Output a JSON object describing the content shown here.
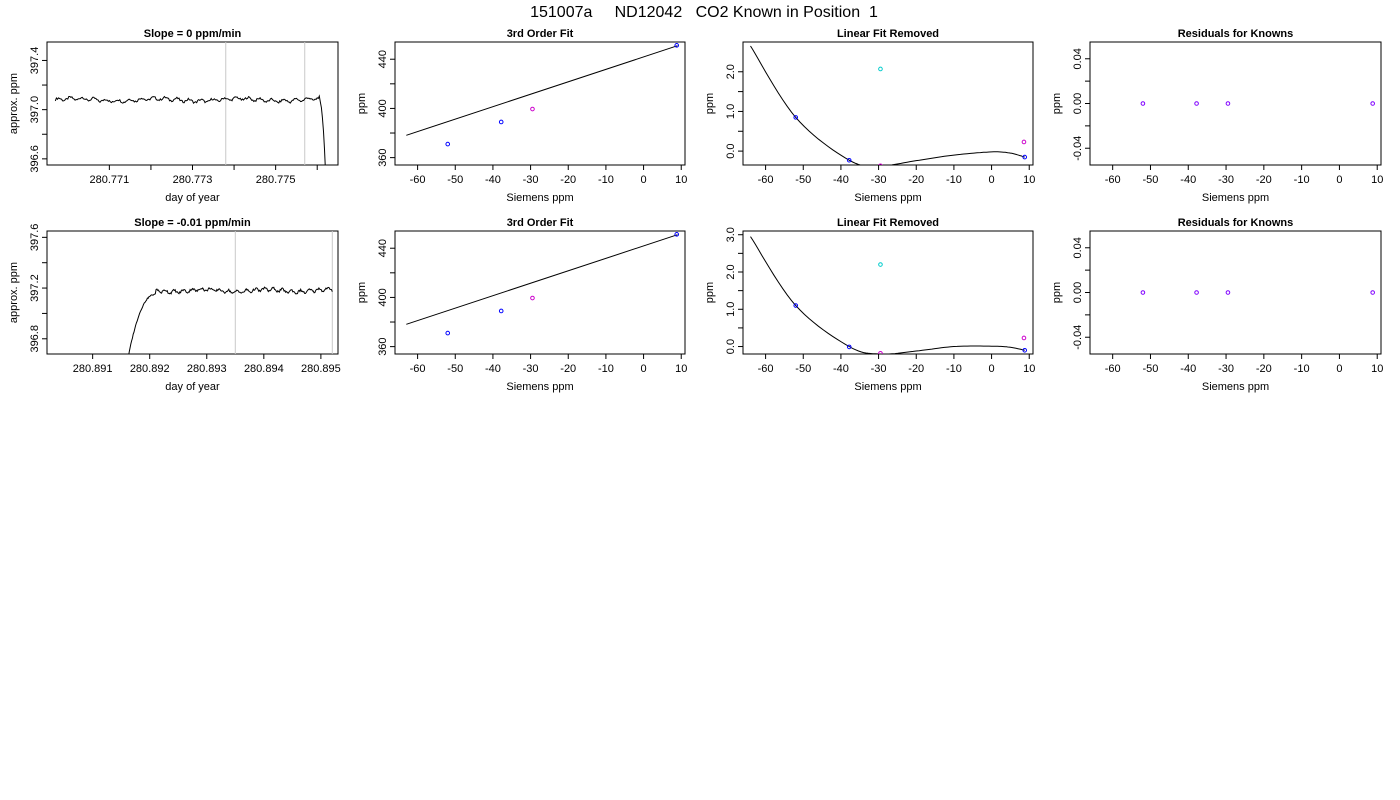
{
  "figure": {
    "title": "151007a     ND12042   CO2 Known in Position  1"
  },
  "colors": {
    "trace": "#000000",
    "vline": "#c8c8c8",
    "known": "#0000ff",
    "unknown": "#00cccc",
    "extra": "#cc00cc",
    "residual": "#8000ff"
  },
  "chart_data": [
    {
      "id": "r1-trace",
      "type": "line",
      "title": "Slope =  0  ppm/min",
      "xlabel": "day of year",
      "ylabel": "approx. ppm",
      "xlim": [
        280.7695,
        280.7765
      ],
      "ylim": [
        396.55,
        397.55
      ],
      "xticks": [
        280.771,
        280.772,
        280.773,
        280.774,
        280.775,
        280.776
      ],
      "xticklabels": [
        "280.771",
        "",
        "280.773",
        "",
        "280.775",
        ""
      ],
      "yticks": [
        396.6,
        397.0,
        397.4
      ],
      "yticklabels": [
        "396.6",
        "397.0",
        "397.4"
      ],
      "yminor": [
        396.8,
        397.2
      ],
      "vlines": [
        280.7738,
        280.7757
      ],
      "series": [
        {
          "values_profile": "flat",
          "base": 397.08,
          "x_start": 280.7697,
          "x_end": 280.7762,
          "tail_drop_to": 396.5
        }
      ]
    },
    {
      "id": "r1-fit",
      "type": "scatter",
      "title": "3rd Order Fit",
      "xlabel": "Siemens ppm",
      "ylabel": "ppm",
      "xlim": [
        -66,
        11
      ],
      "ylim": [
        354,
        454
      ],
      "xticks": [
        -60,
        -50,
        -40,
        -30,
        -20,
        -10,
        0,
        10
      ],
      "yticks": [
        360,
        400,
        440
      ],
      "yminor": [
        380,
        420
      ],
      "curve": {
        "slope": 1.0126,
        "intercept": 441.9,
        "x0": -63
      },
      "points": [
        {
          "x": -52.0,
          "y": 371.0,
          "role": "known"
        },
        {
          "x": -37.8,
          "y": 389.0,
          "role": "known"
        },
        {
          "x": -29.5,
          "y": 399.5,
          "role": "extra"
        },
        {
          "x": 8.8,
          "y": 451.3,
          "role": "known"
        }
      ]
    },
    {
      "id": "r1-linrem",
      "type": "scatter",
      "title": "Linear Fit Removed",
      "xlabel": "Siemens ppm",
      "ylabel": "ppm",
      "xlim": [
        -66,
        11
      ],
      "ylim": [
        -0.35,
        2.75
      ],
      "xticks": [
        -60,
        -50,
        -40,
        -30,
        -20,
        -10,
        0,
        10
      ],
      "yticks": [
        0.0,
        1.0,
        2.0
      ],
      "yticklabels": [
        "0.0",
        "1.0",
        "2.0"
      ],
      "yminor": [
        0.5,
        1.5
      ],
      "curve": {
        "type": "poly",
        "x0": -64.0,
        "x1": 9.0,
        "pts": [
          [
            -64,
            2.65
          ],
          [
            -52,
            0.85
          ],
          [
            -37.8,
            -0.23
          ],
          [
            -29.5,
            -0.37
          ],
          [
            -20,
            -0.24
          ],
          [
            -10,
            -0.1
          ],
          [
            0,
            -0.02
          ],
          [
            5,
            -0.05
          ],
          [
            8.8,
            -0.15
          ]
        ]
      },
      "points": [
        {
          "x": -52.0,
          "y": 0.85,
          "role": "known"
        },
        {
          "x": -37.8,
          "y": -0.23,
          "role": "known"
        },
        {
          "x": -29.5,
          "y": -0.37,
          "role": "extra"
        },
        {
          "x": -29.5,
          "y": 2.07,
          "role": "unknown"
        },
        {
          "x": 8.6,
          "y": 0.23,
          "role": "extra"
        },
        {
          "x": 8.8,
          "y": -0.15,
          "role": "known"
        }
      ]
    },
    {
      "id": "r1-resid",
      "type": "scatter",
      "title": "Residuals for Knowns",
      "xlabel": "Siemens ppm",
      "ylabel": "ppm",
      "xlim": [
        -66,
        11
      ],
      "ylim": [
        -0.055,
        0.055
      ],
      "xticks": [
        -60,
        -50,
        -40,
        -30,
        -20,
        -10,
        0,
        10
      ],
      "yticks": [
        -0.04,
        0.0,
        0.04
      ],
      "yticklabels": [
        "-0.04",
        "0.00",
        "0.04"
      ],
      "yminor": [
        -0.02,
        0.02
      ],
      "points": [
        {
          "x": -52.0,
          "y": 0.0,
          "role": "residual"
        },
        {
          "x": -37.8,
          "y": 0.0,
          "role": "residual"
        },
        {
          "x": -29.5,
          "y": 0.0,
          "role": "residual"
        },
        {
          "x": 8.8,
          "y": 0.0,
          "role": "residual"
        }
      ]
    },
    {
      "id": "r2-trace",
      "type": "line",
      "title": "Slope =  -0.01  ppm/min",
      "xlabel": "day of year",
      "ylabel": "approx. ppm",
      "xlim": [
        280.8902,
        280.8953
      ],
      "ylim": [
        396.68,
        397.65
      ],
      "xticks": [
        280.891,
        280.892,
        280.893,
        280.894,
        280.895
      ],
      "xticklabels": [
        "280.891",
        "280.892",
        "280.893",
        "280.894",
        "280.895"
      ],
      "yticks": [
        396.8,
        397.2,
        397.6
      ],
      "yticklabels": [
        "396.8",
        "397.2",
        "397.6"
      ],
      "yminor": [
        397.0,
        397.4
      ],
      "vlines": [
        280.8935,
        280.8952
      ],
      "series": [
        {
          "values_profile": "rise",
          "base": 397.18,
          "x_start": 280.8916,
          "x_end": 280.8952,
          "head_from": 396.6,
          "rise_end": 280.8921
        }
      ]
    },
    {
      "id": "r2-fit",
      "type": "scatter",
      "title": "3rd Order Fit",
      "xlabel": "Siemens ppm",
      "ylabel": "ppm",
      "xlim": [
        -66,
        11
      ],
      "ylim": [
        354,
        454
      ],
      "xticks": [
        -60,
        -50,
        -40,
        -30,
        -20,
        -10,
        0,
        10
      ],
      "yticks": [
        360,
        400,
        440
      ],
      "yminor": [
        380,
        420
      ],
      "curve": {
        "slope": 1.0126,
        "intercept": 441.9,
        "x0": -63
      },
      "points": [
        {
          "x": -52.0,
          "y": 371.0,
          "role": "known"
        },
        {
          "x": -37.8,
          "y": 389.0,
          "role": "known"
        },
        {
          "x": -29.5,
          "y": 399.5,
          "role": "extra"
        },
        {
          "x": 8.8,
          "y": 451.3,
          "role": "known"
        }
      ]
    },
    {
      "id": "r2-linrem",
      "type": "scatter",
      "title": "Linear Fit Removed",
      "xlabel": "Siemens ppm",
      "ylabel": "ppm",
      "xlim": [
        -66,
        11
      ],
      "ylim": [
        -0.2,
        3.1
      ],
      "xticks": [
        -60,
        -50,
        -40,
        -30,
        -20,
        -10,
        0,
        10
      ],
      "yticks": [
        0.0,
        1.0,
        2.0,
        3.0
      ],
      "yticklabels": [
        "0.0",
        "1.0",
        "2.0",
        "3.0"
      ],
      "yminor": [
        0.5,
        1.5,
        2.5
      ],
      "curve": {
        "type": "poly",
        "x0": -64.0,
        "x1": 9.0,
        "pts": [
          [
            -64,
            2.95
          ],
          [
            -52,
            1.1
          ],
          [
            -37.8,
            0.0
          ],
          [
            -29.5,
            -0.2
          ],
          [
            -20,
            -0.12
          ],
          [
            -10,
            0.0
          ],
          [
            0,
            0.01
          ],
          [
            5,
            -0.02
          ],
          [
            8.8,
            -0.1
          ]
        ]
      },
      "points": [
        {
          "x": -52.0,
          "y": 1.1,
          "role": "known"
        },
        {
          "x": -37.8,
          "y": -0.01,
          "role": "known"
        },
        {
          "x": -29.5,
          "y": -0.18,
          "role": "extra"
        },
        {
          "x": -29.5,
          "y": 2.2,
          "role": "unknown"
        },
        {
          "x": 8.6,
          "y": 0.23,
          "role": "extra"
        },
        {
          "x": 8.8,
          "y": -0.1,
          "role": "known"
        }
      ]
    },
    {
      "id": "r2-resid",
      "type": "scatter",
      "title": "Residuals for Knowns",
      "xlabel": "Siemens ppm",
      "ylabel": "ppm",
      "xlim": [
        -66,
        11
      ],
      "ylim": [
        -0.055,
        0.055
      ],
      "xticks": [
        -60,
        -50,
        -40,
        -30,
        -20,
        -10,
        0,
        10
      ],
      "yticks": [
        -0.04,
        0.0,
        0.04
      ],
      "yticklabels": [
        "-0.04",
        "0.00",
        "0.04"
      ],
      "yminor": [
        -0.02,
        0.02
      ],
      "points": [
        {
          "x": -52.0,
          "y": 0.0,
          "role": "residual"
        },
        {
          "x": -37.8,
          "y": 0.0,
          "role": "residual"
        },
        {
          "x": -29.5,
          "y": 0.0,
          "role": "residual"
        },
        {
          "x": 8.8,
          "y": 0.0,
          "role": "residual"
        }
      ]
    }
  ]
}
